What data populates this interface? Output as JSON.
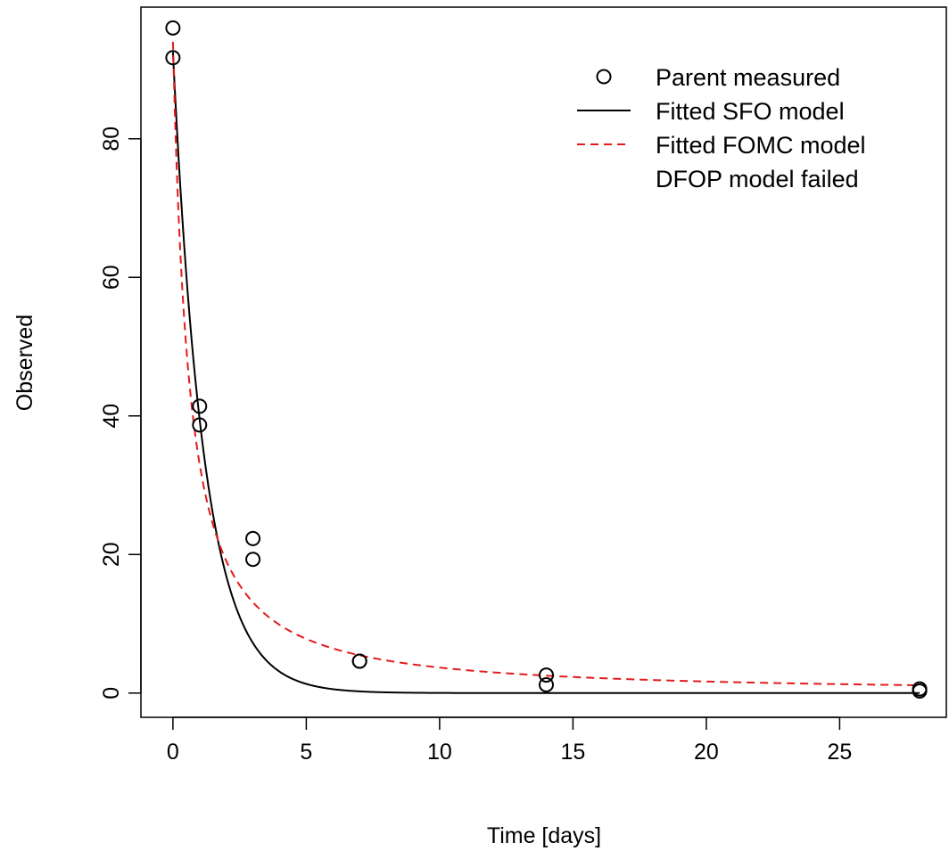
{
  "chart_data": {
    "type": "scatter",
    "title": "",
    "xlabel": "Time [days]",
    "ylabel": "Observed",
    "xlim": [
      -1.2,
      29
    ],
    "ylim": [
      -3.5,
      99
    ],
    "xticks": [
      0,
      5,
      10,
      15,
      20,
      25
    ],
    "yticks": [
      0,
      20,
      40,
      60,
      80
    ],
    "grid": false,
    "legend_position": "top-right",
    "points": {
      "name": "Parent measured",
      "x": [
        0,
        0,
        1,
        1,
        3,
        3,
        7,
        7,
        14,
        14,
        28,
        28
      ],
      "y": [
        96.0,
        91.7,
        41.4,
        38.7,
        22.3,
        19.3,
        4.6,
        4.6,
        2.6,
        1.2,
        0.3,
        0.6
      ]
    },
    "series": [
      {
        "name": "Fitted SFO model",
        "model": "SFO",
        "params": {
          "parent_0": 92.5,
          "k": 0.85
        },
        "color": "#000000",
        "line_style": "solid"
      },
      {
        "name": "Fitted FOMC model",
        "model": "FOMC",
        "params": {
          "parent_0": 94.0,
          "alpha": 1.2,
          "beta": 0.72
        },
        "color": "#e41a1c",
        "line_style": "dashed"
      }
    ],
    "legend": [
      {
        "label": "Parent measured",
        "symbol": "circle"
      },
      {
        "label": "Fitted SFO model",
        "symbol": "solid-line"
      },
      {
        "label": "Fitted FOMC model",
        "symbol": "dashed-line"
      },
      {
        "label": "DFOP model failed",
        "symbol": "none"
      }
    ]
  }
}
